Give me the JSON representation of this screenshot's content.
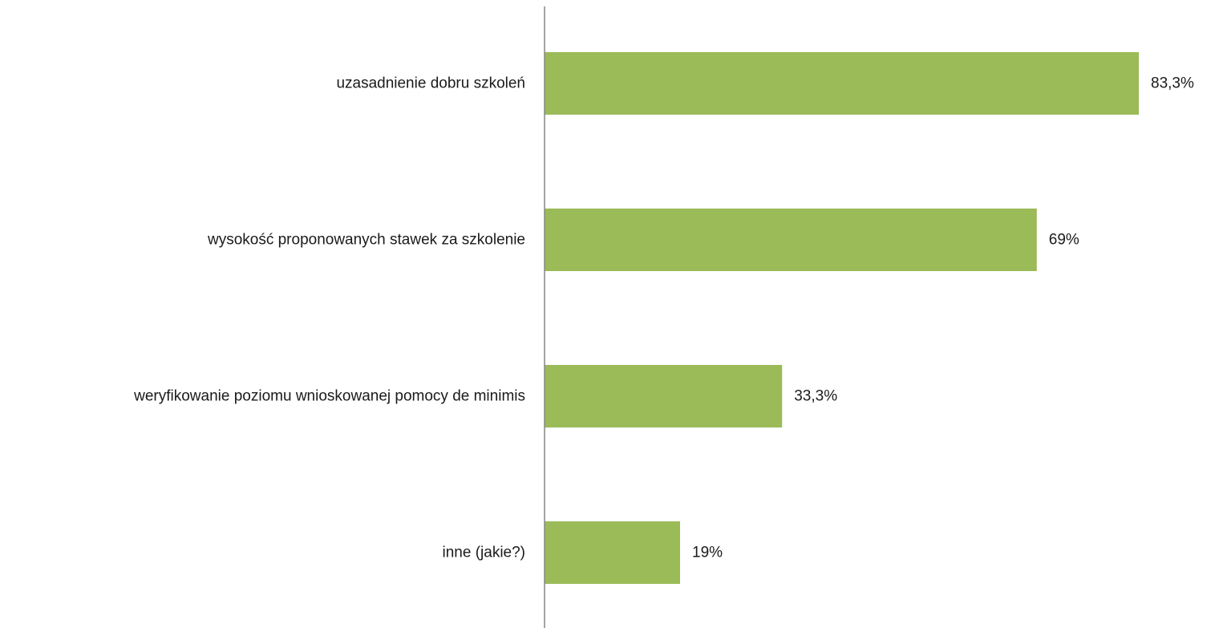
{
  "chart_data": {
    "type": "bar",
    "orientation": "horizontal",
    "categories": [
      "uzasadnienie dobru szkoleń",
      "wysokość proponowanych stawek za szkolenie",
      "weryfikowanie poziomu wnioskowanej pomocy de minimis",
      "inne (jakie?)"
    ],
    "values": [
      83.3,
      69,
      33.3,
      19
    ],
    "value_labels": [
      "83,3%",
      "69%",
      "33,3%",
      "19%"
    ],
    "title": "",
    "xlabel": "",
    "ylabel": "",
    "xlim": [
      0,
      100
    ],
    "grid": false,
    "legend": "none",
    "colors": {
      "bar": "#9bbb59",
      "axis": "#868686",
      "text": "#1a1a1a"
    }
  }
}
